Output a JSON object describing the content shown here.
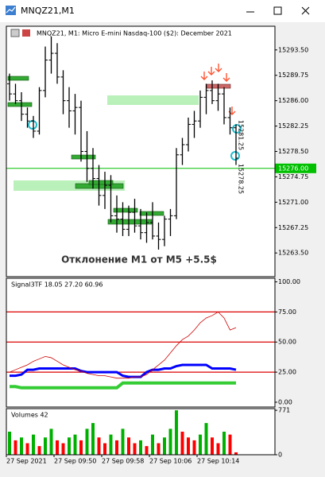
{
  "window": {
    "title": "MNQZ21,M1"
  },
  "chart_data": [
    {
      "type": "ohlc",
      "title": "MNQZ21, M1:  Micro E-mini Nasdaq-100 ($2): December 2021",
      "annotation": "Отклонение M1 от M5 +5.5$",
      "annotations": [
        "15281.25",
        "15278.25"
      ],
      "categories": [
        "27 Sep 2021",
        null,
        null,
        null,
        null,
        null,
        null,
        null,
        "27 Sep 09:50",
        null,
        null,
        null,
        null,
        null,
        null,
        null,
        "27 Sep 09:58",
        null,
        null,
        null,
        null,
        null,
        null,
        null,
        "27 Sep 10:06",
        null,
        null,
        null,
        null,
        null,
        null,
        null,
        "27 Sep 10:14",
        null,
        null,
        null,
        null,
        null,
        null
      ],
      "open": [
        15288.5,
        15287.0,
        15286.0,
        15284.0,
        15283.0,
        15281.5,
        15287.5,
        15292.0,
        15293.0,
        15289.5,
        15286.0,
        15284.5,
        15285.0,
        15278.5,
        15276.0,
        15274.5,
        15272.0,
        15273.5,
        15269.0,
        15268.5,
        15267.0,
        15269.5,
        15267.5,
        15266.5,
        15268.0,
        15266.0,
        15265.5,
        15268.5,
        15269.0,
        15278.0,
        15279.5,
        15282.5,
        15283.0,
        15286.5,
        15287.5,
        15286.0,
        15287.0,
        15283.5,
        15282.0
      ],
      "high": [
        15290.0,
        15288.5,
        15287.25,
        15285.0,
        15283.75,
        15288.0,
        15294.0,
        15295.5,
        15294.5,
        15290.5,
        15288.0,
        15287.0,
        15286.0,
        15281.5,
        15279.0,
        15276.5,
        15275.5,
        15275.0,
        15272.0,
        15271.0,
        15270.5,
        15271.5,
        15270.0,
        15269.5,
        15271.0,
        15268.0,
        15269.0,
        15270.0,
        15279.0,
        15280.5,
        15283.5,
        15284.5,
        15287.5,
        15288.5,
        15289.0,
        15288.5,
        15288.0,
        15285.0,
        15282.5
      ],
      "low": [
        15286.0,
        15285.5,
        15283.0,
        15282.0,
        15280.5,
        15281.0,
        15286.5,
        15290.0,
        15288.5,
        15284.0,
        15282.0,
        15281.0,
        15277.0,
        15274.0,
        15273.0,
        15270.5,
        15270.0,
        15268.0,
        15266.5,
        15266.0,
        15266.0,
        15266.5,
        15265.5,
        15265.0,
        15265.5,
        15264.0,
        15264.5,
        15266.0,
        15268.5,
        15276.5,
        15278.5,
        15280.5,
        15282.0,
        15284.0,
        15285.5,
        15284.5,
        15282.5,
        15281.0,
        15276.5
      ],
      "close": [
        15287.0,
        15286.0,
        15284.0,
        15283.0,
        15281.5,
        15287.5,
        15292.0,
        15293.0,
        15289.5,
        15286.0,
        15284.5,
        15285.0,
        15278.5,
        15276.0,
        15274.5,
        15272.0,
        15273.5,
        15269.0,
        15268.5,
        15267.0,
        15269.5,
        15267.5,
        15266.5,
        15268.0,
        15266.0,
        15265.5,
        15268.5,
        15269.0,
        15278.0,
        15279.5,
        15282.5,
        15283.0,
        15286.5,
        15287.5,
        15286.0,
        15287.0,
        15283.5,
        15282.0,
        15277.5
      ],
      "color": "#000000",
      "ylim": [
        15260,
        15297
      ],
      "yticks": [
        {
          "value": 15263.5,
          "label": "15263.50"
        },
        {
          "value": 15267.25,
          "label": "15267.25"
        },
        {
          "value": 15271.0,
          "label": "15271.00"
        },
        {
          "value": 15274.75,
          "label": "15274.75"
        },
        {
          "value": 15278.5,
          "label": "15278.50"
        },
        {
          "value": 15282.25,
          "label": "15282.25"
        },
        {
          "value": 15286.0,
          "label": "15286.00"
        },
        {
          "value": 15289.75,
          "label": "15289.75"
        },
        {
          "value": 15293.5,
          "label": "15293.50"
        }
      ],
      "hline": {
        "value": 15276.0,
        "label": "15276.00",
        "color": "#00c000"
      }
    },
    {
      "type": "line",
      "title": "Signal3TF 18.05 27.20 60.96",
      "series": [
        {
          "name": "blue",
          "color": "#0000ff",
          "width": 3,
          "values": [
            22,
            22,
            23,
            27,
            27,
            28,
            28,
            28,
            28,
            28,
            28,
            28,
            26,
            25,
            25,
            25,
            25,
            25,
            25,
            22,
            21,
            21,
            21,
            25,
            27,
            27,
            28,
            28,
            30,
            31,
            31,
            31,
            31,
            31,
            28,
            28,
            28,
            28,
            27
          ]
        },
        {
          "name": "green",
          "color": "#33cc33",
          "width": 4,
          "values": [
            13,
            13,
            12,
            12,
            12,
            12,
            12,
            12,
            12,
            12,
            12,
            12,
            12,
            12,
            12,
            12,
            12,
            12,
            12,
            16,
            16,
            16,
            16,
            16,
            16,
            16,
            16,
            16,
            16,
            16,
            16,
            16,
            16,
            16,
            16,
            16,
            16,
            16,
            16
          ]
        },
        {
          "name": "red",
          "color": "#cc0000",
          "width": 0.8,
          "values": [
            25,
            27,
            29,
            31,
            34,
            36,
            38,
            37,
            34,
            31,
            29,
            27,
            26,
            24,
            23,
            22,
            22,
            21,
            20,
            20,
            20,
            21,
            21,
            23,
            27,
            31,
            35,
            41,
            47,
            52,
            55,
            60,
            66,
            70,
            72,
            75,
            70,
            60,
            62
          ]
        }
      ],
      "levels": [
        25,
        50,
        75
      ],
      "level_color": "#dd0000",
      "ylim": [
        -4,
        103
      ],
      "yticks": [
        {
          "value": 0,
          "label": "0.00"
        },
        {
          "value": 25,
          "label": "25.00"
        },
        {
          "value": 50,
          "label": "50.00"
        },
        {
          "value": 75,
          "label": "75.00"
        },
        {
          "value": 100,
          "label": "100.00"
        }
      ]
    },
    {
      "type": "volume",
      "title": "Volumes 42",
      "values": [
        400,
        250,
        300,
        200,
        350,
        150,
        300,
        450,
        250,
        200,
        300,
        350,
        250,
        450,
        550,
        300,
        200,
        350,
        250,
        450,
        300,
        200,
        250,
        150,
        350,
        200,
        300,
        450,
        771,
        400,
        300,
        250,
        350,
        550,
        300,
        200,
        400,
        350,
        42
      ],
      "up_color": "#00b000",
      "down_color": "#ff0000",
      "ylim": [
        0,
        800
      ],
      "yticks": [
        0,
        771
      ]
    }
  ]
}
